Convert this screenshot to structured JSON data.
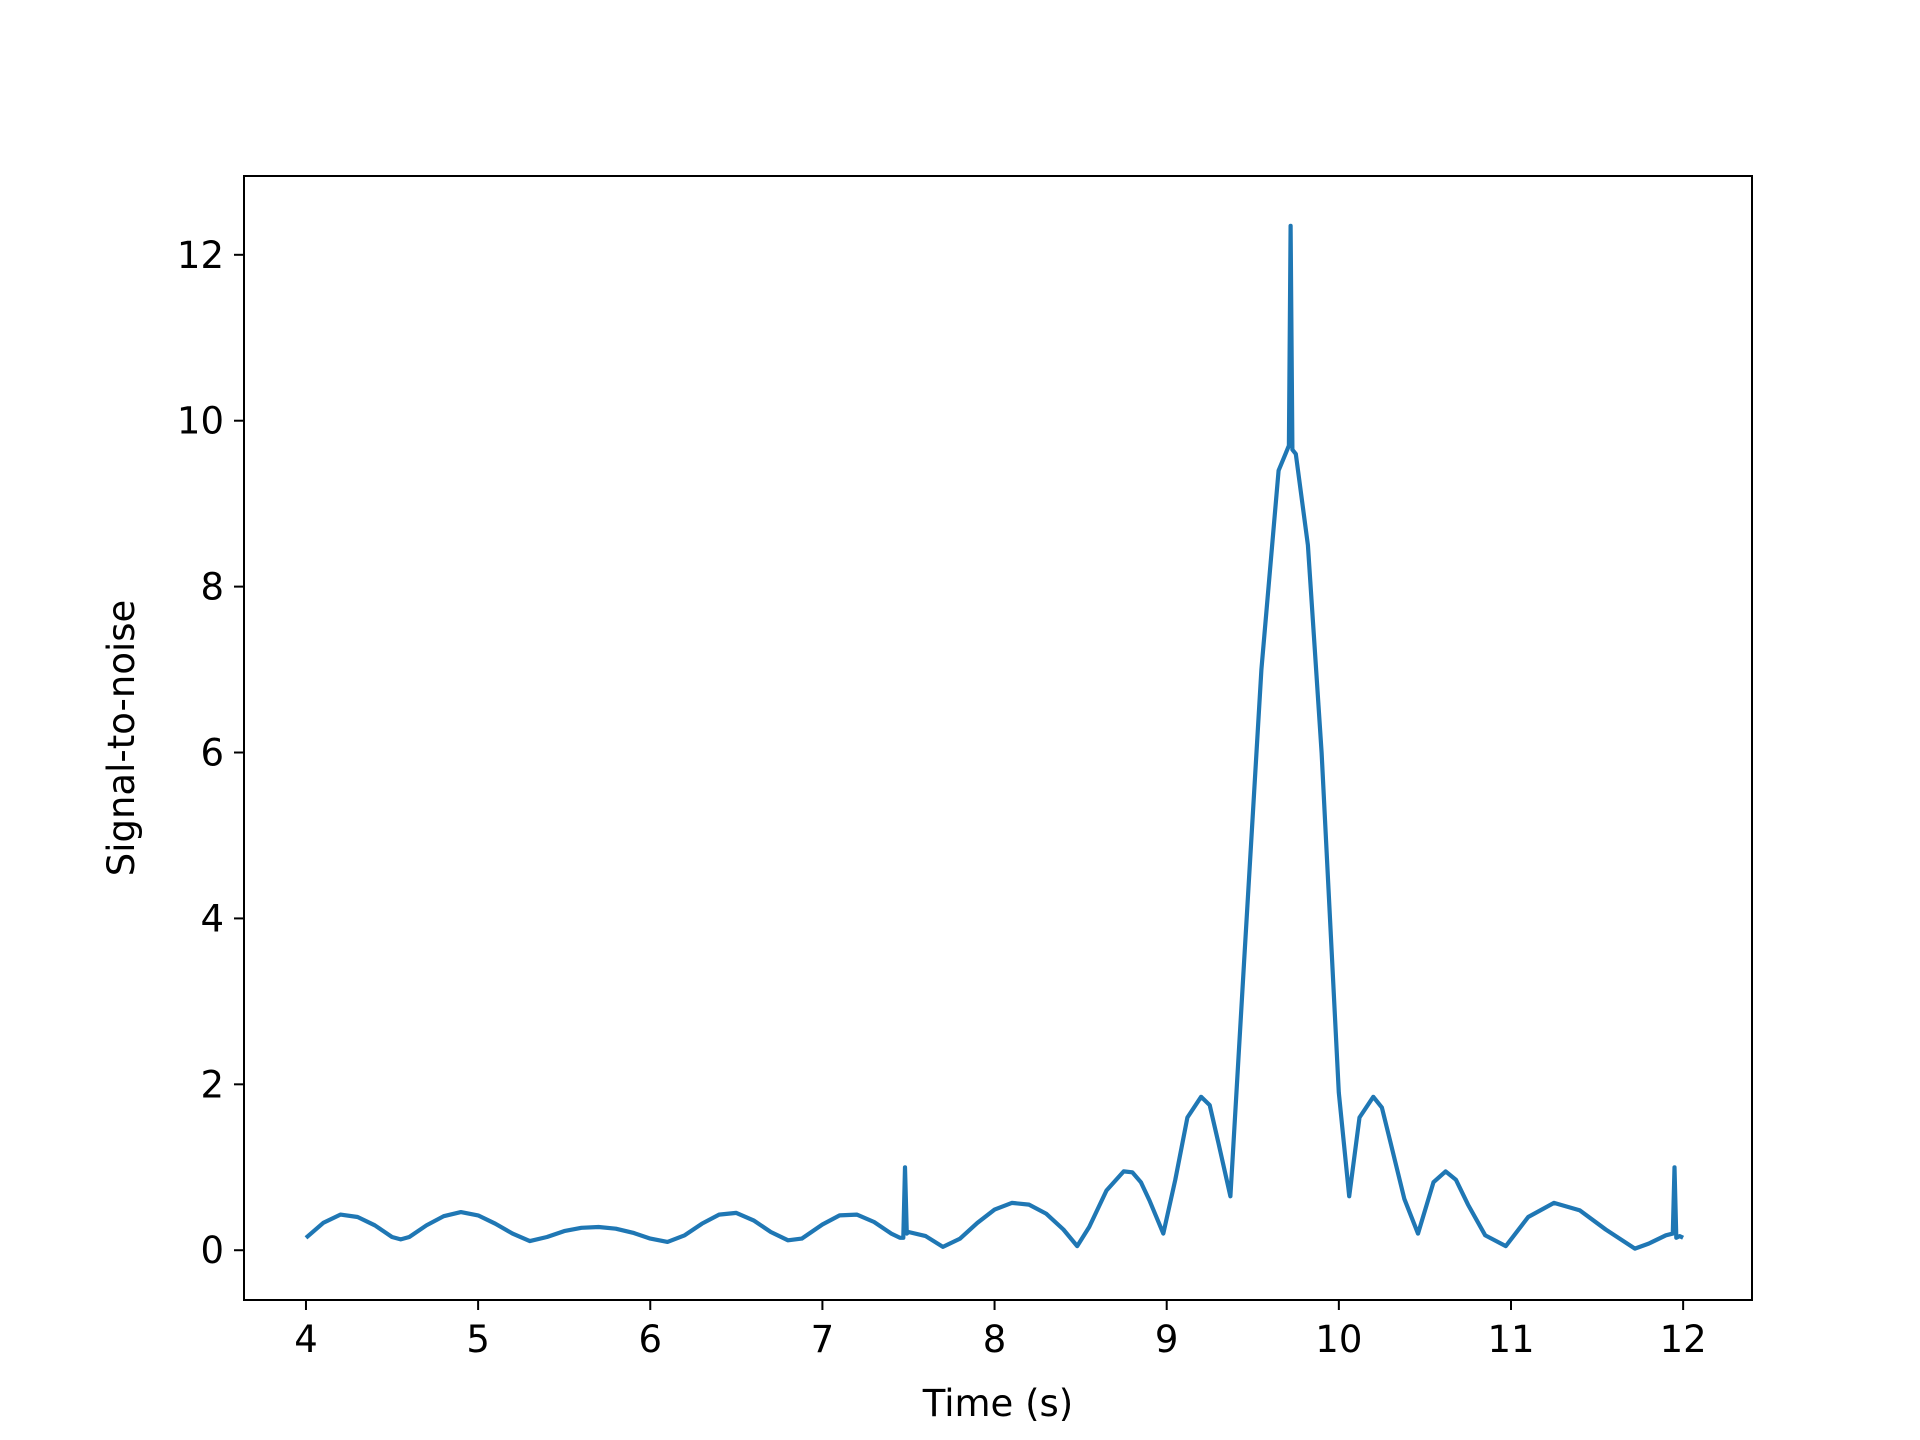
{
  "chart_data": {
    "type": "line",
    "title": "",
    "xlabel": "Time (s)",
    "ylabel": "Signal-to-noise",
    "xlim": [
      3.64,
      12.4
    ],
    "ylim": [
      -0.6,
      12.95
    ],
    "xticks": [
      4,
      5,
      6,
      7,
      8,
      9,
      10,
      11,
      12
    ],
    "yticks": [
      0,
      2,
      4,
      6,
      8,
      10,
      12
    ],
    "xtick_labels": [
      "4",
      "5",
      "6",
      "7",
      "8",
      "9",
      "10",
      "11",
      "12"
    ],
    "ytick_labels": [
      "0",
      "2",
      "4",
      "6",
      "8",
      "10",
      "12"
    ],
    "grid": false,
    "legend": "none",
    "line_color": "#1f77b4",
    "series": [
      {
        "x": [
          4.0,
          4.1,
          4.2,
          4.3,
          4.4,
          4.5,
          4.55,
          4.6,
          4.7,
          4.8,
          4.9,
          5.0,
          5.1,
          5.2,
          5.3,
          5.4,
          5.5,
          5.6,
          5.7,
          5.8,
          5.9,
          6.0,
          6.1,
          6.2,
          6.3,
          6.4,
          6.5,
          6.6,
          6.7,
          6.8,
          6.88,
          7.0,
          7.1,
          7.2,
          7.3,
          7.4,
          7.45,
          7.47,
          7.48,
          7.49,
          7.5,
          7.6,
          7.7,
          7.8,
          7.9,
          8.0,
          8.1,
          8.2,
          8.3,
          8.4,
          8.48,
          8.55,
          8.65,
          8.75,
          8.8,
          8.85,
          8.9,
          8.98,
          9.05,
          9.12,
          9.2,
          9.25,
          9.3,
          9.37,
          9.45,
          9.55,
          9.65,
          9.69,
          9.71,
          9.72,
          9.73,
          9.75,
          9.82,
          9.9,
          10.0,
          10.06,
          10.12,
          10.2,
          10.25,
          10.3,
          10.38,
          10.46,
          10.55,
          10.62,
          10.68,
          10.75,
          10.85,
          10.97,
          11.1,
          11.25,
          11.4,
          11.55,
          11.72,
          11.8,
          11.9,
          11.94,
          11.95,
          11.96,
          11.98,
          12.0
        ],
        "y": [
          0.15,
          0.33,
          0.43,
          0.4,
          0.3,
          0.16,
          0.13,
          0.16,
          0.3,
          0.41,
          0.46,
          0.42,
          0.32,
          0.2,
          0.11,
          0.16,
          0.23,
          0.27,
          0.28,
          0.26,
          0.21,
          0.14,
          0.1,
          0.18,
          0.32,
          0.43,
          0.45,
          0.36,
          0.22,
          0.12,
          0.14,
          0.31,
          0.42,
          0.43,
          0.34,
          0.2,
          0.15,
          0.15,
          1.0,
          0.2,
          0.22,
          0.17,
          0.04,
          0.14,
          0.33,
          0.49,
          0.57,
          0.55,
          0.44,
          0.25,
          0.05,
          0.28,
          0.72,
          0.95,
          0.94,
          0.82,
          0.6,
          0.2,
          0.85,
          1.6,
          1.85,
          1.75,
          1.3,
          0.65,
          3.5,
          7.0,
          9.4,
          9.6,
          9.7,
          12.35,
          9.65,
          9.6,
          8.5,
          6.0,
          1.9,
          0.65,
          1.6,
          1.85,
          1.72,
          1.3,
          0.62,
          0.2,
          0.82,
          0.95,
          0.85,
          0.55,
          0.18,
          0.05,
          0.4,
          0.57,
          0.48,
          0.25,
          0.02,
          0.08,
          0.18,
          0.2,
          1.0,
          0.15,
          0.17,
          0.15
        ]
      }
    ]
  }
}
